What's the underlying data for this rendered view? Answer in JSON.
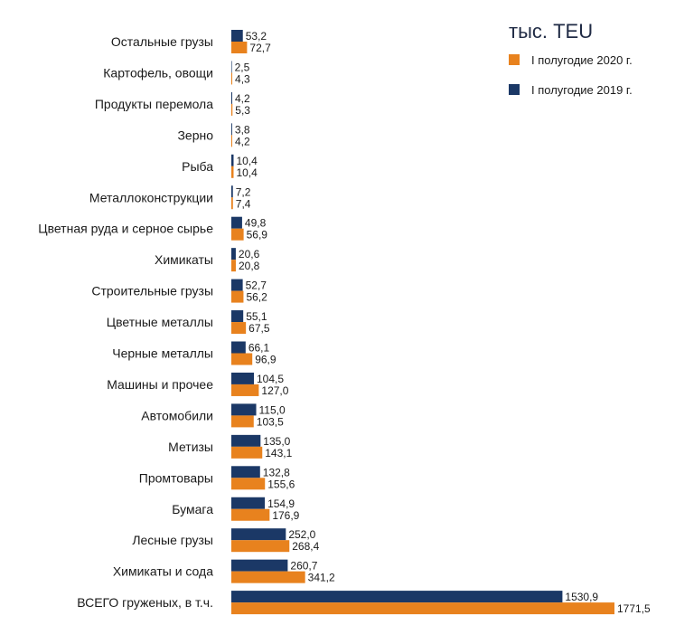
{
  "unit_label": "тыс. TEU",
  "legend": [
    {
      "label": "I полугодие 2020 г.",
      "color": "#e8821e"
    },
    {
      "label": "I полугодие 2019 г.",
      "color": "#1b3866"
    }
  ],
  "chart_data": {
    "type": "bar",
    "orientation": "horizontal",
    "categories": [
      "Остальные грузы",
      "Картофель, овощи",
      "Продукты перемола",
      "Зерно",
      "Рыба",
      "Металлоконструкции",
      "Цветная руда и серное сырье",
      "Химикаты",
      "Строительные грузы",
      "Цветные металлы",
      "Черные металлы",
      "Машины и прочее",
      "Автомобили",
      "Метизы",
      "Промтовары",
      "Бумага",
      "Лесные грузы",
      "Химикаты и сода",
      "ВСЕГО груженых, в т.ч."
    ],
    "series": [
      {
        "name": "I полугодие 2019 г.",
        "color": "#1b3866",
        "values": [
          53.2,
          2.5,
          4.2,
          3.8,
          10.4,
          7.2,
          49.8,
          20.6,
          52.7,
          55.1,
          66.1,
          104.5,
          115.0,
          135.0,
          132.8,
          154.9,
          252.0,
          260.7,
          1530.9
        ],
        "labels": [
          "53,2",
          "2,5",
          "4,2",
          "3,8",
          "10,4",
          "7,2",
          "49,8",
          "20,6",
          "52,7",
          "55,1",
          "66,1",
          "104,5",
          "115,0",
          "135,0",
          "132,8",
          "154,9",
          "252,0",
          "260,7",
          "1530,9"
        ]
      },
      {
        "name": "I полугодие 2020 г.",
        "color": "#e8821e",
        "values": [
          72.7,
          4.3,
          5.3,
          4.2,
          10.4,
          7.4,
          56.9,
          20.8,
          56.2,
          67.5,
          96.9,
          127.0,
          103.5,
          143.1,
          155.6,
          176.9,
          268.4,
          341.2,
          1771.5
        ],
        "labels": [
          "72,7",
          "4,3",
          "5,3",
          "4,2",
          "10,4",
          "7,4",
          "56,9",
          "20,8",
          "56,2",
          "67,5",
          "96,9",
          "127,0",
          "103,5",
          "143,1",
          "155,6",
          "176,9",
          "268,4",
          "341,2",
          "1771,5"
        ]
      }
    ],
    "xlim": [
      0,
      1771.5
    ],
    "grid": false,
    "legend_position": "top-right"
  }
}
